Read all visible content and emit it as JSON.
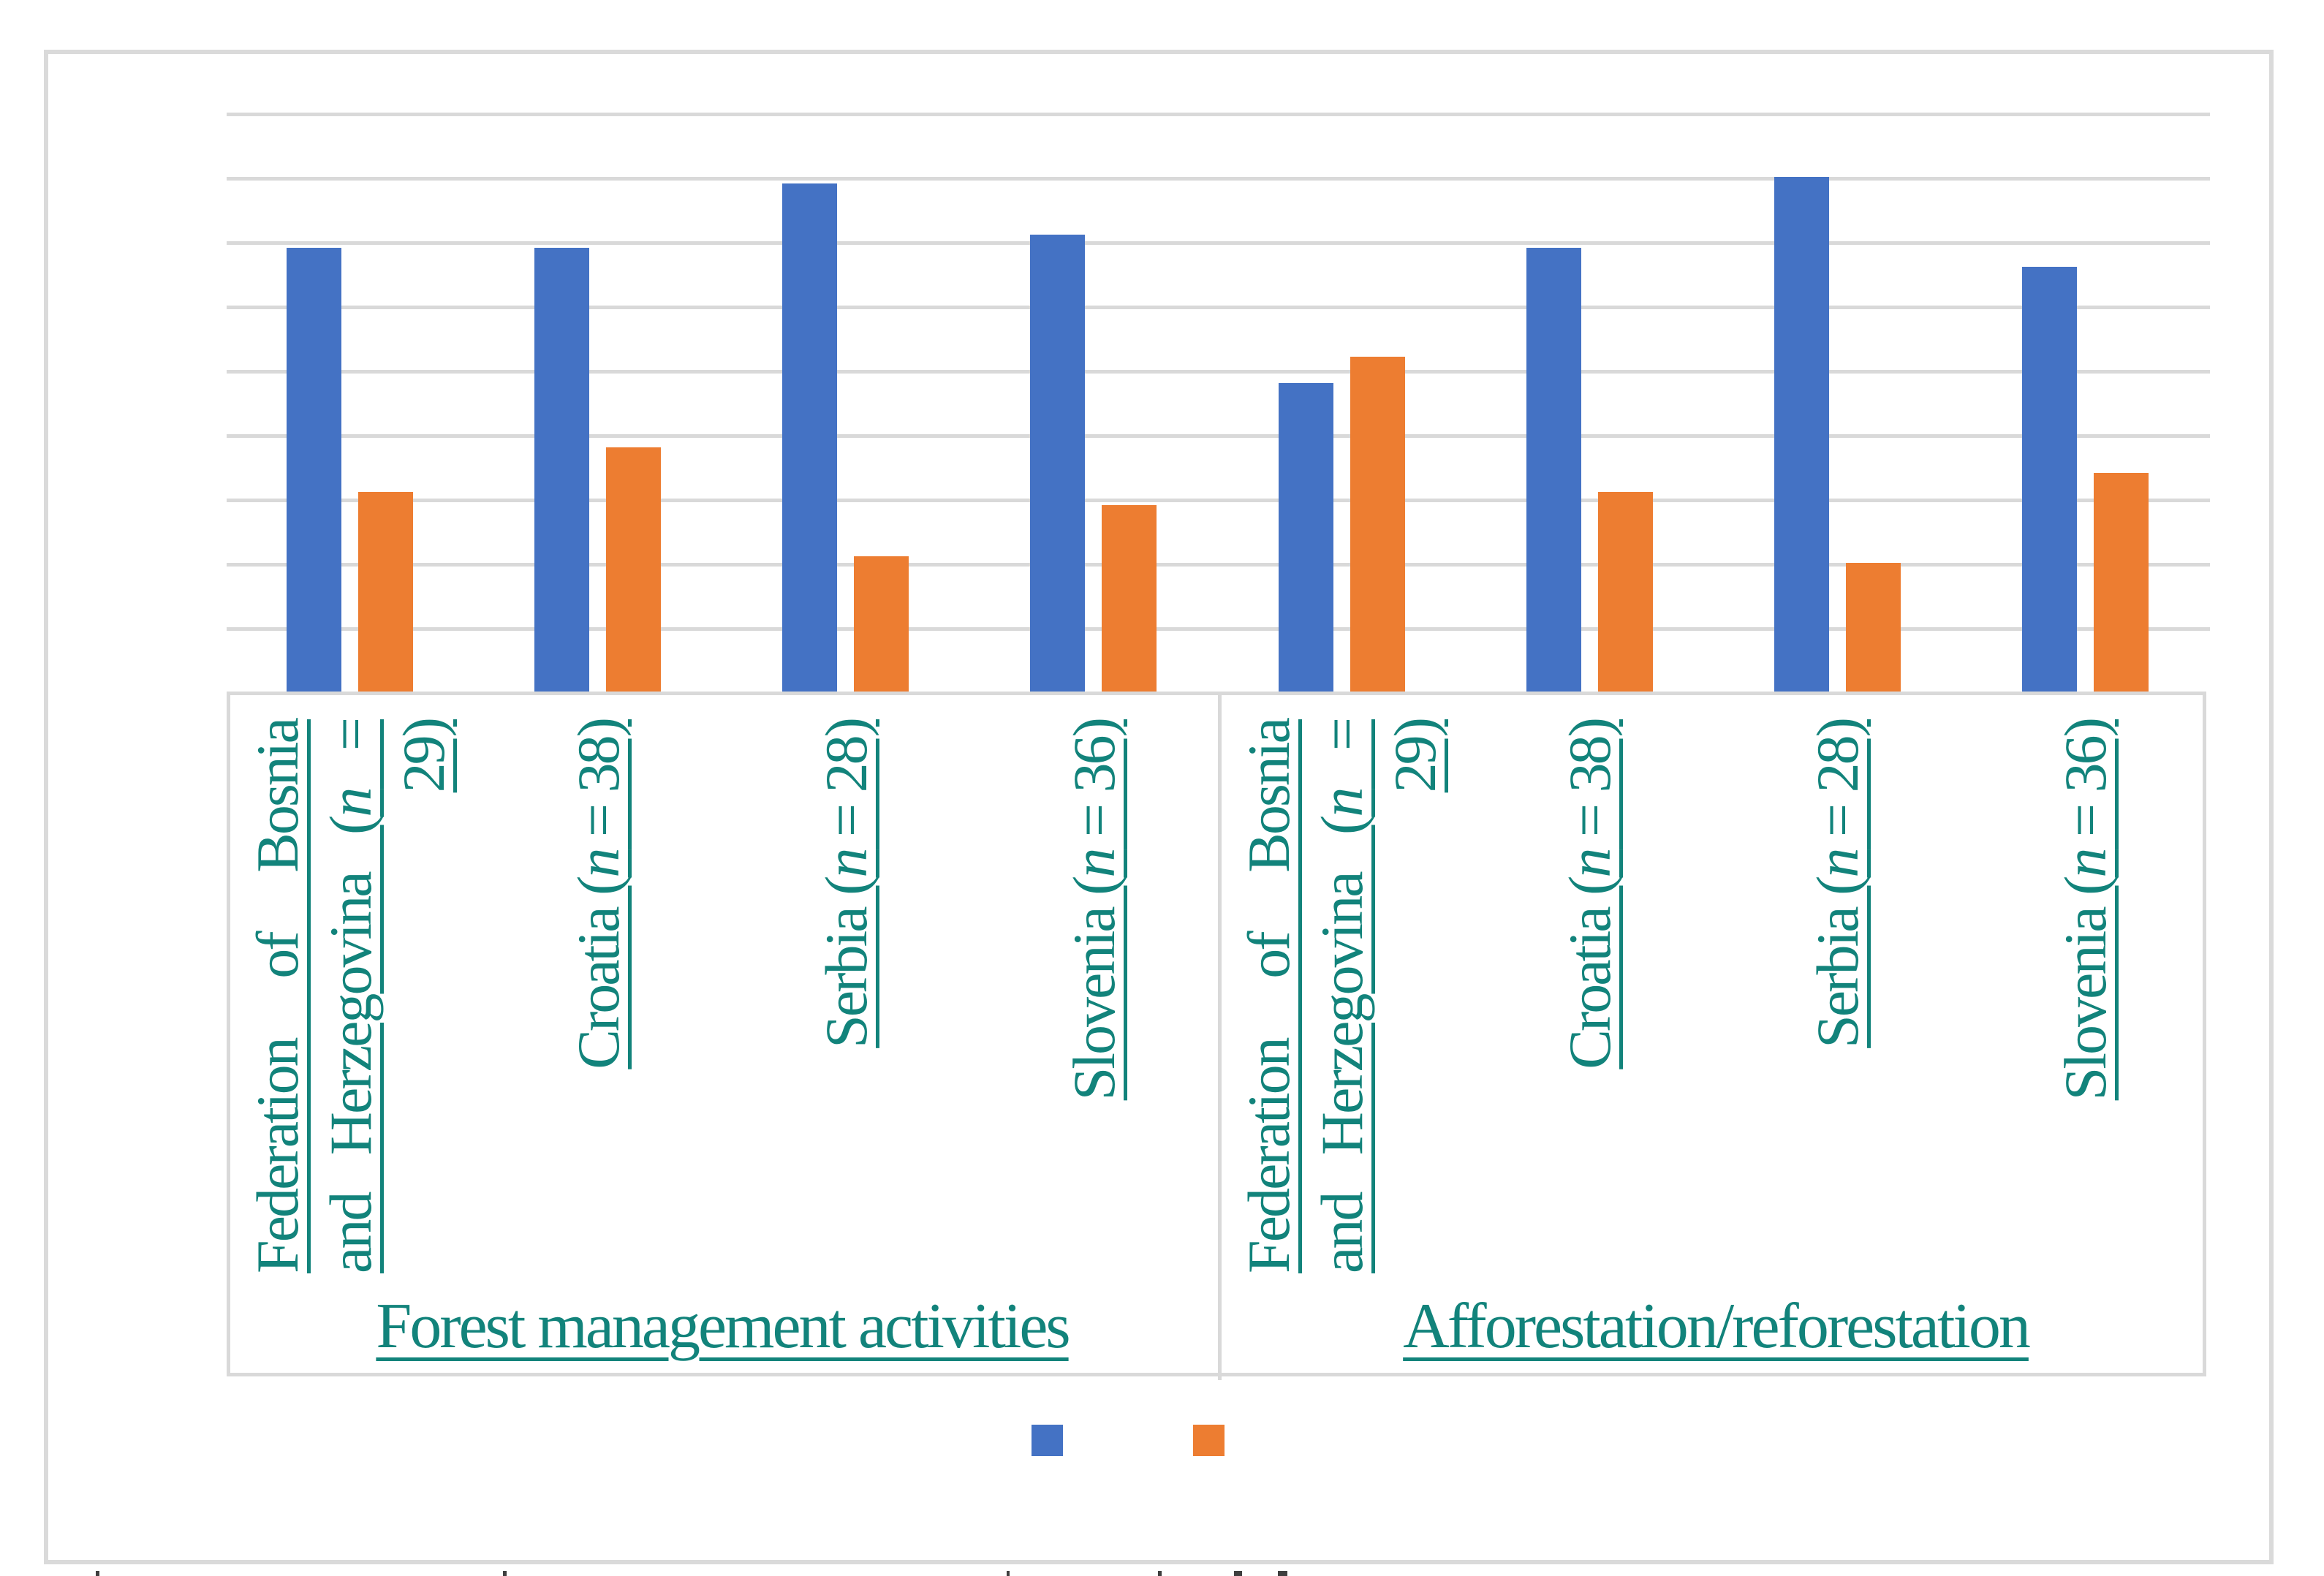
{
  "figure": {
    "background": "#ffffff",
    "outer_border_color": "#DADADA"
  },
  "colors": {
    "series_blue": "#4472C4",
    "series_orange": "#ED7D31",
    "category_text_teal": "#12837B",
    "gridline_gray": "#D9D9D9"
  },
  "chart_data": {
    "type": "bar",
    "title": "",
    "grid": true,
    "yaxis": {
      "tick_labels_visible": false,
      "min": 0,
      "max": 90,
      "gridline_interval": 10
    },
    "legend_position": "bottom",
    "legend_labels_visible": false,
    "group_labels": [
      "Forest management activities",
      "Afforestation/reforestation"
    ],
    "categories": [
      {
        "group": 0,
        "text": "Federation of Bosnia and Herzegovina (n = 29)",
        "lines": [
          {
            "align": "justify",
            "parts": [
              {
                "t": "Federation of Bosnia"
              }
            ]
          },
          {
            "align": "justify",
            "parts": [
              {
                "t": "and Herzegovina ("
              },
              {
                "t": "n",
                "italic": true
              },
              {
                "t": " ="
              }
            ]
          },
          {
            "align": "end",
            "parts": [
              {
                "t": "29)"
              }
            ]
          }
        ]
      },
      {
        "group": 0,
        "text": "Croatia (n = 38)",
        "lines": [
          {
            "align": "end",
            "parts": [
              {
                "t": "Croatia ("
              },
              {
                "t": "n",
                "italic": true
              },
              {
                "t": " = 38)"
              }
            ]
          }
        ]
      },
      {
        "group": 0,
        "text": "Serbia (n = 28)",
        "lines": [
          {
            "align": "end",
            "parts": [
              {
                "t": "Serbia ("
              },
              {
                "t": "n",
                "italic": true
              },
              {
                "t": " = 28)"
              }
            ]
          }
        ]
      },
      {
        "group": 0,
        "text": "Slovenia (n = 36)",
        "lines": [
          {
            "align": "end",
            "parts": [
              {
                "t": "Slovenia ("
              },
              {
                "t": "n",
                "italic": true
              },
              {
                "t": " = 36)"
              }
            ]
          }
        ]
      },
      {
        "group": 1,
        "text": "Federation of Bosnia and Herzegovina (n = 29)",
        "lines": [
          {
            "align": "justify",
            "parts": [
              {
                "t": "Federation of Bosnia"
              }
            ]
          },
          {
            "align": "justify",
            "parts": [
              {
                "t": "and Herzegovina ("
              },
              {
                "t": "n",
                "italic": true
              },
              {
                "t": " ="
              }
            ]
          },
          {
            "align": "end",
            "parts": [
              {
                "t": "29)"
              }
            ]
          }
        ]
      },
      {
        "group": 1,
        "text": "Croatia (n = 38)",
        "lines": [
          {
            "align": "end",
            "parts": [
              {
                "t": "Croatia ("
              },
              {
                "t": "n",
                "italic": true
              },
              {
                "t": " = 38)"
              }
            ]
          }
        ]
      },
      {
        "group": 1,
        "text": "Serbia (n = 28)",
        "lines": [
          {
            "align": "end",
            "parts": [
              {
                "t": "Serbia ("
              },
              {
                "t": "n",
                "italic": true
              },
              {
                "t": " = 28)"
              }
            ]
          }
        ]
      },
      {
        "group": 1,
        "text": "Slovenia (n = 36)",
        "lines": [
          {
            "align": "end",
            "parts": [
              {
                "t": "Slovenia ("
              },
              {
                "t": "n",
                "italic": true
              },
              {
                "t": " = 36)"
              }
            ]
          }
        ]
      }
    ],
    "series": [
      {
        "name": "blue",
        "color": "#4472C4",
        "values": [
          69,
          69,
          79,
          71,
          48,
          69,
          80,
          66
        ]
      },
      {
        "name": "orange",
        "color": "#ED7D31",
        "values": [
          31,
          38,
          21,
          29,
          52,
          31,
          20,
          34
        ]
      }
    ]
  },
  "legend": {
    "swatches": [
      {
        "name": "blue",
        "color": "#4472C4"
      },
      {
        "name": "orange",
        "color": "#ED7D31"
      }
    ]
  },
  "caption_fragments": [
    {
      "x": 131,
      "w": 5
    },
    {
      "x": 688,
      "w": 5
    },
    {
      "x": 1377,
      "w": 4
    },
    {
      "x": 1584,
      "w": 5
    },
    {
      "x": 1688,
      "w": 11
    },
    {
      "x": 1748,
      "w": 13
    }
  ]
}
